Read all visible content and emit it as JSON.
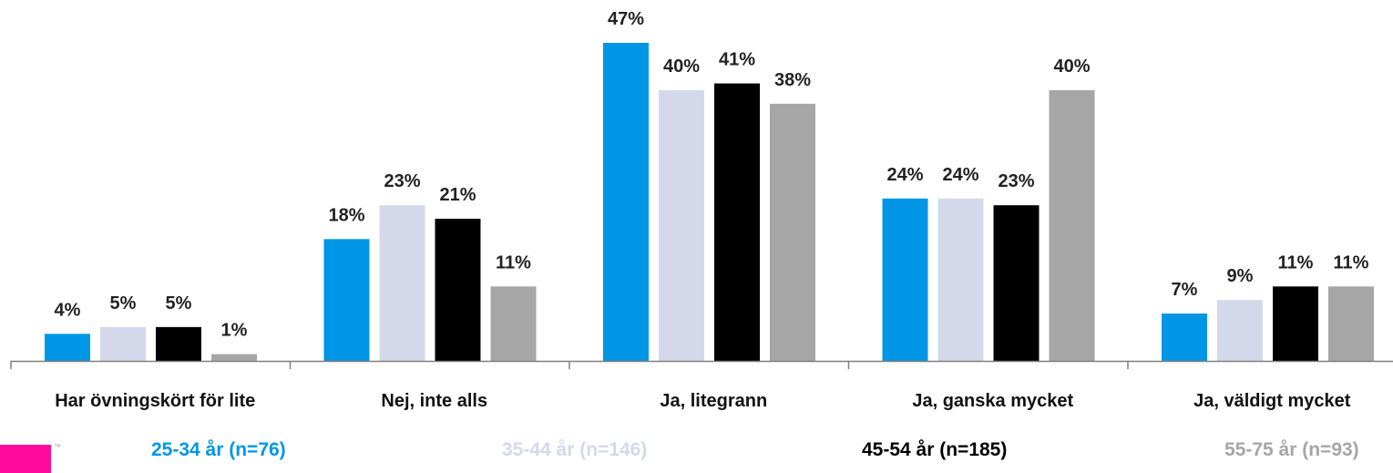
{
  "chart_data": {
    "type": "bar",
    "categories": [
      "Har övningskört för lite",
      "Nej, inte alls",
      "Ja, litegrann",
      "Ja, ganska mycket",
      "Ja, väldigt mycket"
    ],
    "series": [
      {
        "name": "25-34 år (n=76)",
        "color": "#0096e6",
        "values": [
          4,
          18,
          47,
          24,
          7
        ]
      },
      {
        "name": "35-44 år (n=146)",
        "color": "#d3d9ea",
        "values": [
          5,
          23,
          40,
          24,
          9
        ]
      },
      {
        "name": "45-54 år (n=185)",
        "color": "#000000",
        "values": [
          5,
          21,
          41,
          23,
          11
        ]
      },
      {
        "name": "55-75 år (n=93)",
        "color": "#a6a6a6",
        "values": [
          1,
          11,
          38,
          40,
          11
        ]
      }
    ],
    "value_suffix": "%",
    "ylim": [
      0,
      47
    ],
    "grid": false,
    "legend_position": "bottom"
  },
  "logo": {
    "color": "#ff0a9c",
    "tm": "™"
  }
}
